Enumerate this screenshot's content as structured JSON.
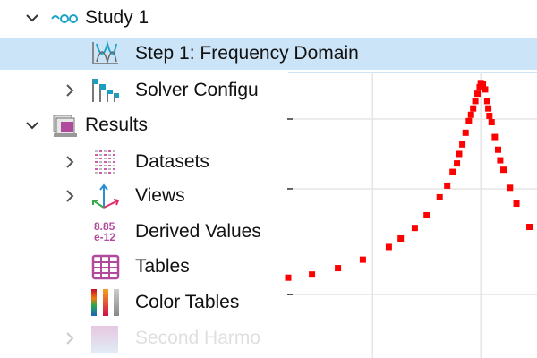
{
  "tree": {
    "items": [
      {
        "label": "Study 1",
        "icon": "study-icon",
        "expanded": true
      },
      {
        "label": "Step 1: Frequency Domain",
        "icon": "frequency-domain-icon",
        "selected": true
      },
      {
        "label": "Solver Configu",
        "icon": "solver-configurations-icon",
        "expanded": false
      },
      {
        "label": "Results",
        "icon": "results-icon",
        "expanded": true
      },
      {
        "label": "Datasets",
        "icon": "datasets-icon",
        "expanded": false
      },
      {
        "label": "Views",
        "icon": "views-icon",
        "expanded": false
      },
      {
        "label": "Derived Values",
        "icon": "derived-values-icon",
        "icon_text": "8.85 e-12"
      },
      {
        "label": "Tables",
        "icon": "tables-icon"
      },
      {
        "label": "Color Tables",
        "icon": "color-tables-icon"
      },
      {
        "label": "Second Harmo",
        "icon": "plot-group-icon",
        "expanded": false
      }
    ],
    "selection_color": "#cce4f7"
  },
  "chart_data": {
    "type": "scatter",
    "marker": "square",
    "color": "#ff0000",
    "grid": true,
    "xlim": [
      0.22,
      2.52
    ],
    "ylim": [
      -0.6,
      2.1
    ],
    "x_gridlines": [
      1,
      2
    ],
    "y_gridlines": [
      0,
      1,
      1.66
    ],
    "x": [
      0.22,
      0.44,
      0.68,
      0.91,
      1.15,
      1.26,
      1.39,
      1.5,
      1.62,
      1.69,
      1.74,
      1.78,
      1.8,
      1.83,
      1.86,
      1.89,
      1.91,
      1.93,
      1.95,
      1.97,
      1.99,
      2.0,
      2.02,
      2.04,
      2.06,
      2.07,
      2.08,
      2.1,
      2.13,
      2.16,
      2.18,
      2.21,
      2.27,
      2.33,
      2.45
    ],
    "y": [
      0.16,
      0.19,
      0.25,
      0.33,
      0.45,
      0.53,
      0.63,
      0.75,
      0.92,
      1.03,
      1.16,
      1.24,
      1.33,
      1.42,
      1.53,
      1.64,
      1.7,
      1.76,
      1.83,
      1.9,
      1.96,
      2.0,
      1.99,
      1.94,
      1.83,
      1.76,
      1.69,
      1.63,
      1.49,
      1.37,
      1.27,
      1.18,
      1.01,
      0.86,
      0.64
    ]
  }
}
